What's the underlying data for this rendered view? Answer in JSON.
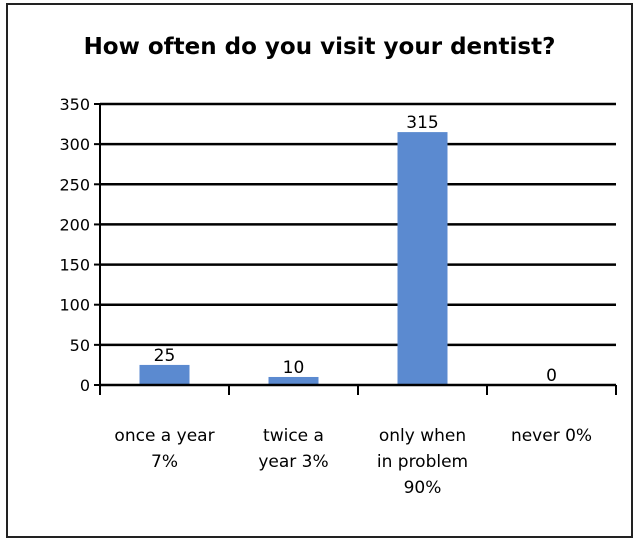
{
  "chart_data": {
    "type": "bar",
    "title": "How often do you visit your dentist?",
    "categories": [
      [
        "once a year",
        "7%"
      ],
      [
        "twice a",
        "year 3%"
      ],
      [
        "only when",
        "in problem",
        "90%"
      ],
      [
        "never 0%"
      ]
    ],
    "values": [
      25,
      10,
      315,
      0
    ],
    "data_labels": [
      "25",
      "10",
      "315",
      "0"
    ],
    "ylim": [
      0,
      350
    ],
    "yticks": [
      0,
      50,
      100,
      150,
      200,
      250,
      300,
      350
    ],
    "bar_color": "#5b8ad0",
    "grid": true,
    "legend": "none"
  }
}
